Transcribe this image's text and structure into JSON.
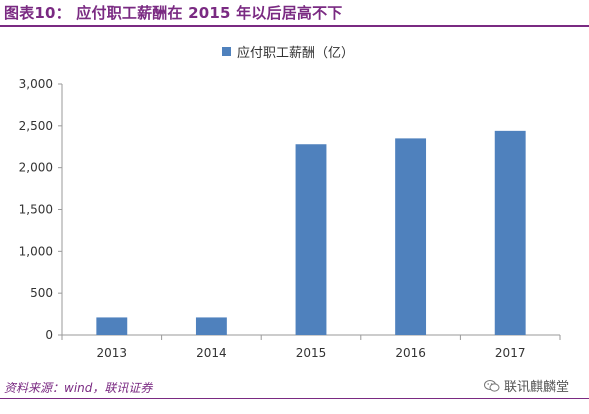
{
  "figure": {
    "title": "图表10：  应付职工薪酬在 2015 年以后居高不下",
    "source": "资料来源：wind，联讯证券",
    "watermark": "联讯麒麟堂",
    "accent_color": "#7a2a82",
    "watermark_icon": "wechat-icon"
  },
  "chart_data": {
    "type": "bar",
    "categories": [
      "2013",
      "2014",
      "2015",
      "2016",
      "2017"
    ],
    "series": [
      {
        "name": "应付职工薪酬（亿）",
        "values": [
          210,
          210,
          2280,
          2350,
          2440
        ],
        "color": "#4f81bd"
      }
    ],
    "ylim": [
      0,
      3000
    ],
    "yticks": [
      0,
      500,
      1000,
      1500,
      2000,
      2500,
      3000
    ],
    "ytick_labels": [
      "0",
      "500",
      "1,000",
      "1,500",
      "2,000",
      "2,500",
      "3,000"
    ],
    "legend_position": "top-center",
    "grid": false
  }
}
